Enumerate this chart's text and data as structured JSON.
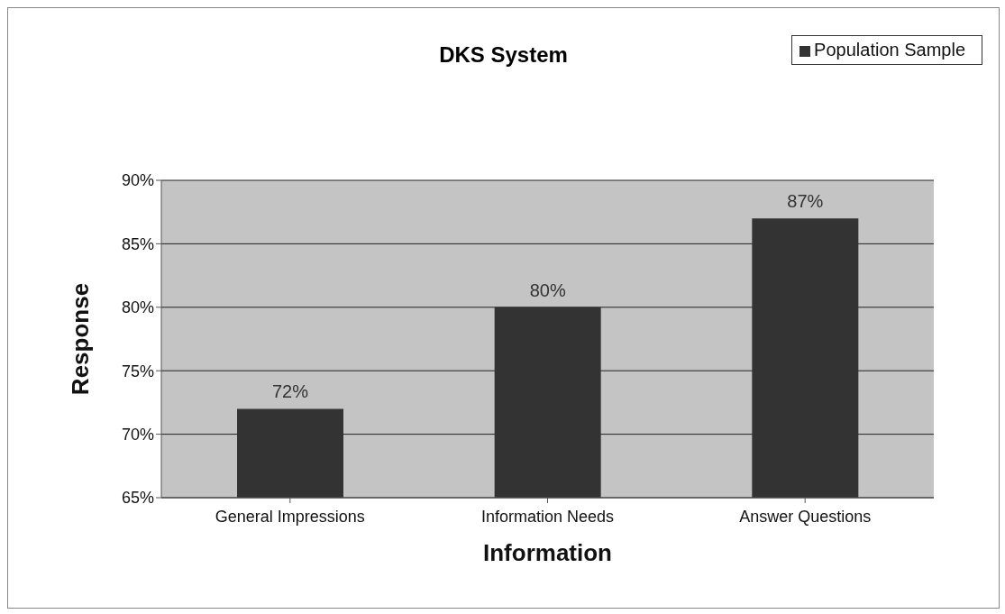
{
  "chart_data": {
    "type": "bar",
    "title": "DKS System",
    "xlabel": "Information",
    "ylabel": "Response",
    "categories": [
      "General Impressions",
      "Information Needs",
      "Answer Questions"
    ],
    "series": [
      {
        "name": "Population Sample",
        "color": "#333333",
        "values": [
          72,
          80,
          87
        ]
      }
    ],
    "value_labels": [
      "72%",
      "80%",
      "87%"
    ],
    "ylim": [
      65,
      90
    ],
    "yticks": [
      {
        "value": 65,
        "label": "65%"
      },
      {
        "value": 70,
        "label": "70%"
      },
      {
        "value": 75,
        "label": "75%"
      },
      {
        "value": 80,
        "label": "80%"
      },
      {
        "value": 85,
        "label": "85%"
      },
      {
        "value": 90,
        "label": "90%"
      }
    ],
    "grid": "y",
    "legend": "top right"
  }
}
